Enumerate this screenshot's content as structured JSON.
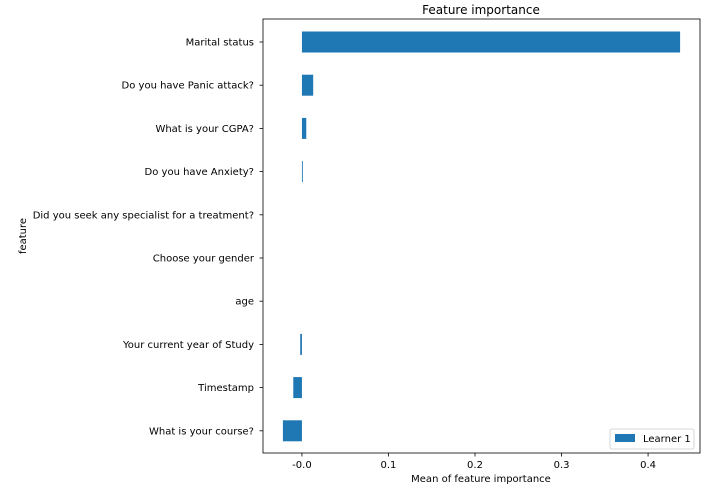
{
  "chart_data": {
    "type": "bar",
    "orientation": "horizontal",
    "title": "Feature importance",
    "xlabel": "Mean of feature importance",
    "ylabel": "feature",
    "categories": [
      "Marital status",
      "Do you have Panic attack?",
      "What is your CGPA?",
      "Do you have Anxiety?",
      "Did you seek any specialist for a treatment?",
      "Choose your gender",
      "age",
      "Your current year of Study",
      "Timestamp",
      "What is your course?"
    ],
    "series": [
      {
        "name": "Learner 1",
        "color": "#1f77b4",
        "values": [
          0.437,
          0.013,
          0.005,
          0.001,
          0.0,
          0.0,
          0.0,
          -0.002,
          -0.01,
          -0.022
        ]
      }
    ],
    "xlim": [
      -0.045,
      0.46
    ],
    "xticks": [
      -0.0,
      0.1,
      0.2,
      0.3,
      0.4
    ],
    "xtick_labels": [
      "-0.0",
      "0.1",
      "0.2",
      "0.3",
      "0.4"
    ],
    "grid": false,
    "legend_position": "lower-right"
  }
}
